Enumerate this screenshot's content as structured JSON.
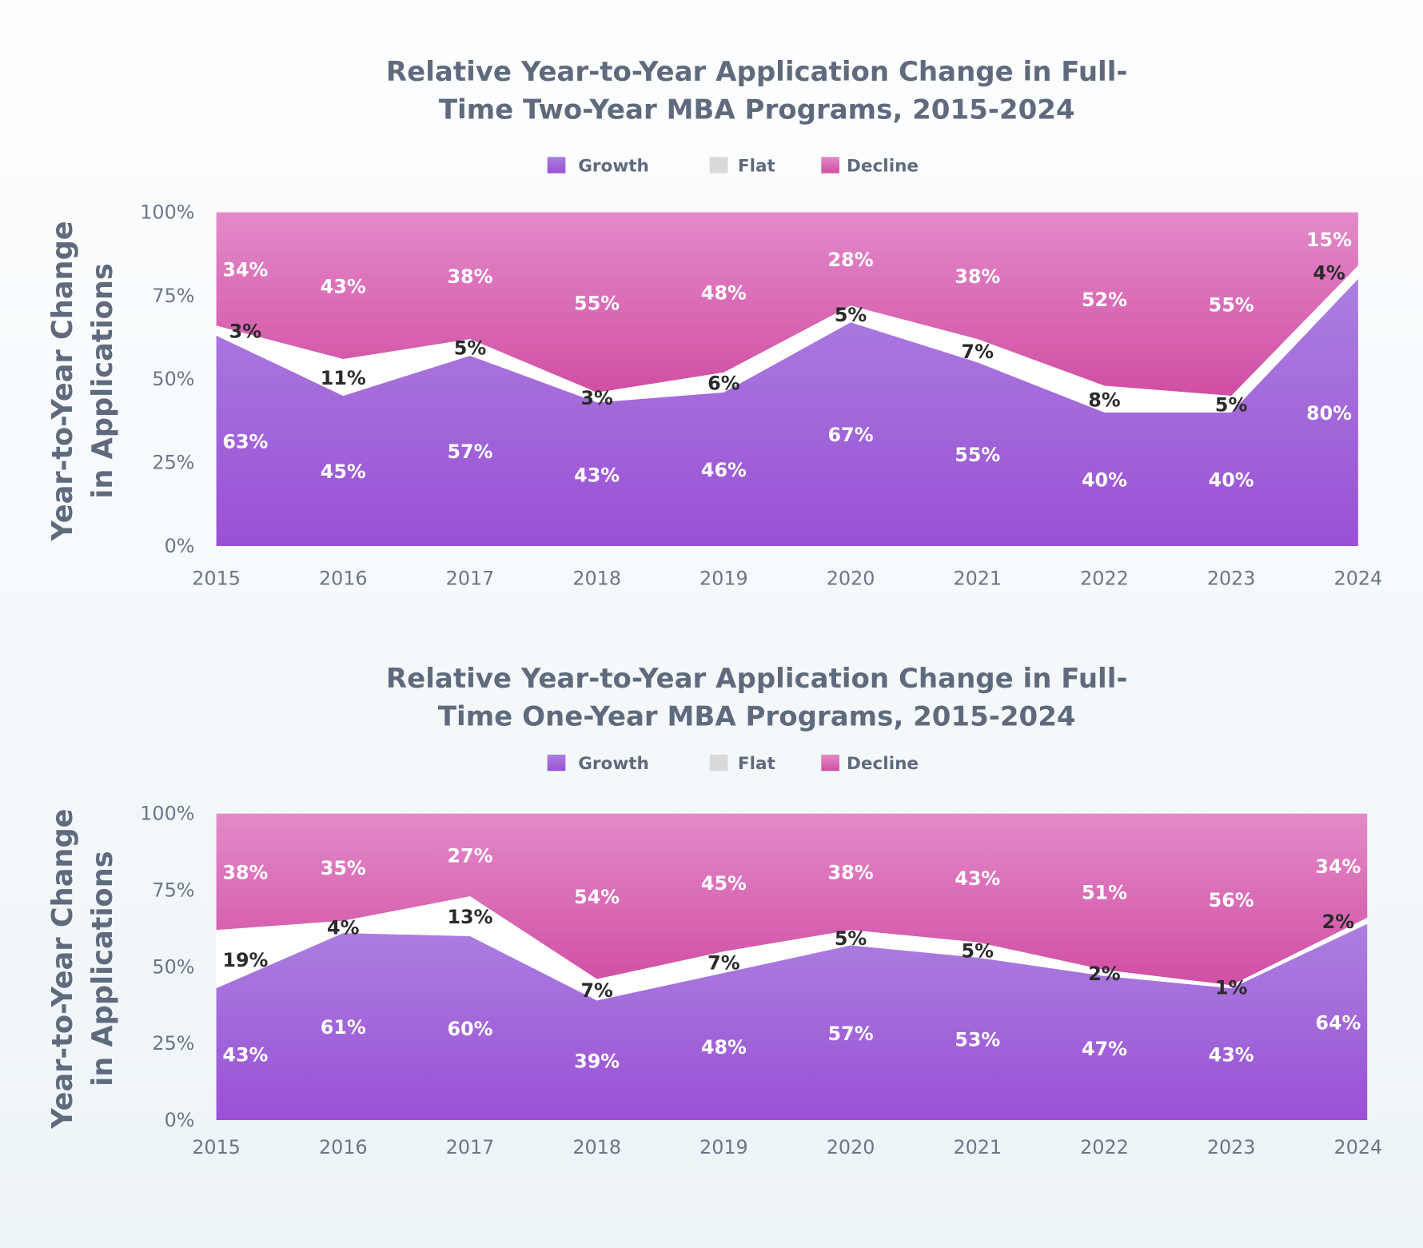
{
  "colors": {
    "growth": "#9e56d6",
    "flat": "#d9d9d9",
    "decline": "#d95aaa",
    "title": "#5f6b7d"
  },
  "chart_data": [
    {
      "type": "area",
      "stacked": true,
      "title_lines": [
        "Relative Year-to-Year Application Change in Full-",
        "Time Two-Year MBA Programs, 2015-2024"
      ],
      "ylabel_lines": [
        "Year-to-Year Change",
        "in Applications"
      ],
      "xlabel": "",
      "legend": [
        "Growth",
        "Flat",
        "Decline"
      ],
      "legend_position": "top",
      "ylim": [
        0,
        100
      ],
      "yticks": [
        "0%",
        "25%",
        "50%",
        "75%",
        "100%"
      ],
      "categories": [
        "2015",
        "2016",
        "2017",
        "2018",
        "2019",
        "2020",
        "2021",
        "2022",
        "2023",
        "2024"
      ],
      "series": [
        {
          "name": "Growth",
          "values": [
            63,
            45,
            57,
            43,
            46,
            67,
            55,
            40,
            40,
            80
          ]
        },
        {
          "name": "Flat",
          "values": [
            3,
            11,
            5,
            3,
            6,
            5,
            7,
            8,
            5,
            4
          ]
        },
        {
          "name": "Decline",
          "values": [
            34,
            43,
            38,
            55,
            48,
            28,
            38,
            52,
            55,
            15
          ]
        }
      ]
    },
    {
      "type": "area",
      "stacked": true,
      "title_lines": [
        "Relative Year-to-Year Application Change in Full-",
        "Time One-Year MBA Programs, 2015-2024"
      ],
      "ylabel_lines": [
        "Year-to-Year Change",
        "in Applications"
      ],
      "xlabel": "",
      "legend": [
        "Growth",
        "Flat",
        "Decline"
      ],
      "legend_position": "top",
      "ylim": [
        0,
        100
      ],
      "yticks": [
        "0%",
        "25%",
        "50%",
        "75%",
        "100%"
      ],
      "categories": [
        "2015",
        "2016",
        "2017",
        "2018",
        "2019",
        "2020",
        "2021",
        "2022",
        "2023",
        "2024"
      ],
      "series": [
        {
          "name": "Growth",
          "values": [
            43,
            61,
            60,
            39,
            48,
            57,
            53,
            47,
            43,
            64
          ]
        },
        {
          "name": "Flat",
          "values": [
            19,
            4,
            13,
            7,
            7,
            5,
            5,
            2,
            1,
            2
          ]
        },
        {
          "name": "Decline",
          "values": [
            38,
            35,
            27,
            54,
            45,
            38,
            43,
            51,
            56,
            34
          ]
        }
      ]
    }
  ]
}
